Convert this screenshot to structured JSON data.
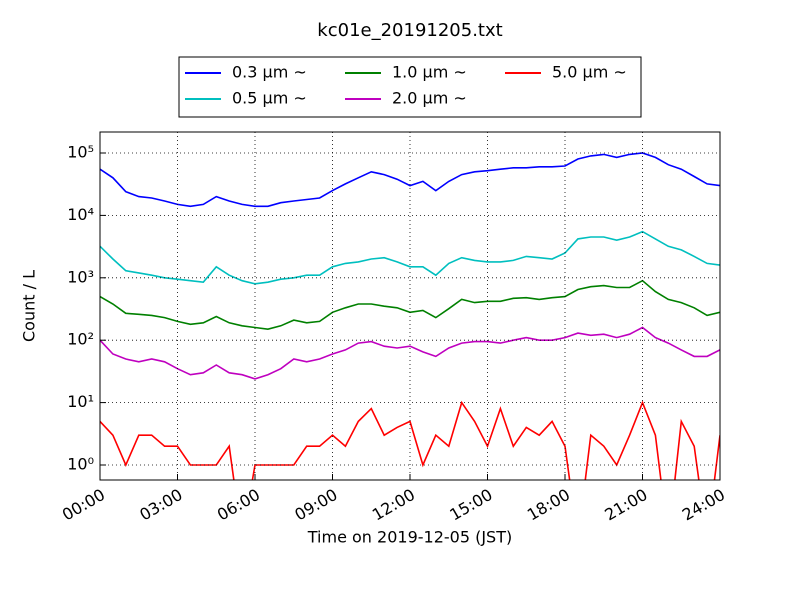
{
  "chart_data": {
    "type": "line",
    "title": "kc01e_20191205.txt",
    "xlabel": "Time on 2019-12-05 (JST)",
    "ylabel": "Count / L",
    "log_y": true,
    "grid": true,
    "legend": "upper center",
    "xlim": [
      0,
      24
    ],
    "xticks": [
      {
        "value": 0,
        "label": "00:00"
      },
      {
        "value": 3,
        "label": "03:00"
      },
      {
        "value": 6,
        "label": "06:00"
      },
      {
        "value": 9,
        "label": "09:00"
      },
      {
        "value": 12,
        "label": "12:00"
      },
      {
        "value": 15,
        "label": "15:00"
      },
      {
        "value": 18,
        "label": "18:00"
      },
      {
        "value": 21,
        "label": "21:00"
      },
      {
        "value": 24,
        "label": "24:00"
      }
    ],
    "ylim": [
      0.575,
      217000
    ],
    "yticks": [
      {
        "value": 1,
        "label": "10⁰"
      },
      {
        "value": 10,
        "label": "10¹"
      },
      {
        "value": 100,
        "label": "10²"
      },
      {
        "value": 1000,
        "label": "10³"
      },
      {
        "value": 10000,
        "label": "10⁴"
      },
      {
        "value": 100000,
        "label": "10⁵"
      }
    ],
    "x": [
      0,
      0.5,
      1,
      1.5,
      2,
      2.5,
      3,
      3.5,
      4,
      4.5,
      5,
      5.5,
      6,
      6.5,
      7,
      7.5,
      8,
      8.5,
      9,
      9.5,
      10,
      10.5,
      11,
      11.5,
      12,
      12.5,
      13,
      13.5,
      14,
      14.5,
      15,
      15.5,
      16,
      16.5,
      17,
      17.5,
      18,
      18.5,
      19,
      19.5,
      20,
      20.5,
      21,
      21.5,
      22,
      22.5,
      23,
      23.5,
      24
    ],
    "series": [
      {
        "name": "0.3 μm ~",
        "color": "#0000ff",
        "values": [
          55000,
          40000,
          24000,
          20000,
          19000,
          17000,
          15000,
          14000,
          15000,
          20000,
          17000,
          15000,
          14000,
          14000,
          16000,
          17000,
          18000,
          19000,
          25000,
          32000,
          40000,
          50000,
          45000,
          38000,
          30000,
          35000,
          25000,
          35000,
          45000,
          50000,
          52000,
          55000,
          58000,
          58000,
          60000,
          60000,
          62000,
          80000,
          90000,
          95000,
          85000,
          95000,
          100000,
          85000,
          65000,
          55000,
          42000,
          32000,
          30000
        ]
      },
      {
        "name": "0.5 μm ~",
        "color": "#00bfbf",
        "values": [
          3200,
          2000,
          1300,
          1200,
          1100,
          1000,
          950,
          900,
          850,
          1500,
          1100,
          900,
          800,
          850,
          950,
          1000,
          1100,
          1100,
          1500,
          1700,
          1800,
          2000,
          2100,
          1800,
          1500,
          1500,
          1100,
          1700,
          2100,
          1900,
          1800,
          1800,
          1900,
          2200,
          2100,
          2000,
          2500,
          4200,
          4500,
          4500,
          4000,
          4500,
          5500,
          4200,
          3200,
          2800,
          2200,
          1700,
          1600
        ]
      },
      {
        "name": "1.0 μm ~",
        "color": "#008000",
        "values": [
          500,
          380,
          270,
          260,
          250,
          230,
          200,
          180,
          190,
          240,
          190,
          170,
          160,
          150,
          170,
          210,
          190,
          200,
          280,
          330,
          380,
          380,
          350,
          330,
          280,
          300,
          230,
          320,
          450,
          400,
          420,
          420,
          470,
          480,
          450,
          480,
          500,
          650,
          720,
          750,
          700,
          700,
          900,
          600,
          450,
          400,
          330,
          250,
          280
        ]
      },
      {
        "name": "2.0 μm ~",
        "color": "#bf00bf",
        "values": [
          100,
          60,
          50,
          45,
          50,
          45,
          35,
          28,
          30,
          40,
          30,
          28,
          24,
          28,
          35,
          50,
          45,
          50,
          60,
          70,
          90,
          95,
          80,
          75,
          80,
          65,
          55,
          75,
          90,
          95,
          95,
          90,
          100,
          110,
          100,
          100,
          110,
          130,
          120,
          125,
          110,
          125,
          160,
          110,
          90,
          70,
          55,
          55,
          70
        ]
      },
      {
        "name": "5.0 μm ~",
        "color": "#ff0000",
        "values": [
          5,
          3,
          1,
          3,
          3,
          2,
          2,
          1,
          1,
          1,
          2,
          0,
          1,
          1,
          1,
          1,
          2,
          2,
          3,
          2,
          5,
          8,
          3,
          4,
          5,
          1,
          3,
          2,
          10,
          5,
          2,
          8,
          2,
          4,
          3,
          5,
          2,
          0,
          3,
          2,
          1,
          3,
          10,
          3,
          0,
          5,
          2,
          0,
          3
        ]
      }
    ]
  }
}
